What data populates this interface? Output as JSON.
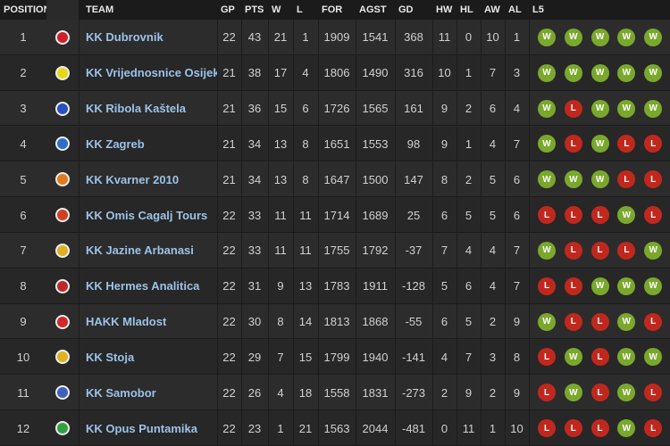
{
  "table": {
    "columns": [
      "POSITION",
      "TEAM",
      "GP",
      "PTS",
      "W",
      "L",
      "FOR",
      "AGST",
      "GD",
      "HW",
      "HL",
      "AW",
      "AL",
      "L5"
    ],
    "rows": [
      {
        "cells": [
          1,
          "KK Dubrovnik",
          22,
          43,
          21,
          1,
          1909,
          1541,
          368,
          11,
          0,
          10,
          1
        ],
        "form": [
          "W",
          "W",
          "W",
          "W",
          "W"
        ]
      },
      {
        "cells": [
          2,
          "KK Vrijednosnice Osijek",
          21,
          38,
          17,
          4,
          1806,
          1490,
          316,
          10,
          1,
          7,
          3
        ],
        "form": [
          "W",
          "W",
          "W",
          "W",
          "W"
        ]
      },
      {
        "cells": [
          3,
          "KK Ribola Kaštela",
          21,
          36,
          15,
          6,
          1726,
          1565,
          161,
          9,
          2,
          6,
          4
        ],
        "form": [
          "W",
          "L",
          "W",
          "W",
          "W"
        ]
      },
      {
        "cells": [
          4,
          "KK Zagreb",
          21,
          34,
          13,
          8,
          1651,
          1553,
          98,
          9,
          1,
          4,
          7
        ],
        "form": [
          "W",
          "L",
          "W",
          "L",
          "L"
        ]
      },
      {
        "cells": [
          5,
          "KK Kvarner 2010",
          21,
          34,
          13,
          8,
          1647,
          1500,
          147,
          8,
          2,
          5,
          6
        ],
        "form": [
          "W",
          "W",
          "W",
          "L",
          "L"
        ]
      },
      {
        "cells": [
          6,
          "KK Omis Cagalj Tours",
          22,
          33,
          11,
          11,
          1714,
          1689,
          25,
          6,
          5,
          5,
          6
        ],
        "form": [
          "L",
          "L",
          "L",
          "W",
          "L"
        ]
      },
      {
        "cells": [
          7,
          "KK Jazine Arbanasi",
          22,
          33,
          11,
          11,
          1755,
          1792,
          -37,
          7,
          4,
          4,
          7
        ],
        "form": [
          "W",
          "L",
          "L",
          "L",
          "W"
        ]
      },
      {
        "cells": [
          8,
          "KK Hermes Analitica",
          22,
          31,
          9,
          13,
          1783,
          1911,
          -128,
          5,
          6,
          4,
          7
        ],
        "form": [
          "L",
          "L",
          "W",
          "W",
          "W"
        ]
      },
      {
        "cells": [
          9,
          "HAKK Mladost",
          22,
          30,
          8,
          14,
          1813,
          1868,
          -55,
          6,
          5,
          2,
          9
        ],
        "form": [
          "W",
          "L",
          "L",
          "W",
          "L"
        ]
      },
      {
        "cells": [
          10,
          "KK Stoja",
          22,
          29,
          7,
          15,
          1799,
          1940,
          -141,
          4,
          7,
          3,
          8
        ],
        "form": [
          "L",
          "W",
          "L",
          "W",
          "W"
        ]
      },
      {
        "cells": [
          11,
          "KK Samobor",
          22,
          26,
          4,
          18,
          1558,
          1831,
          -273,
          2,
          9,
          2,
          9
        ],
        "form": [
          "L",
          "W",
          "L",
          "W",
          "L"
        ]
      },
      {
        "cells": [
          12,
          "KK Opus Puntamika",
          22,
          23,
          1,
          21,
          1563,
          2044,
          -481,
          0,
          11,
          1,
          10
        ],
        "form": [
          "L",
          "L",
          "L",
          "W",
          "L"
        ]
      }
    ]
  }
}
